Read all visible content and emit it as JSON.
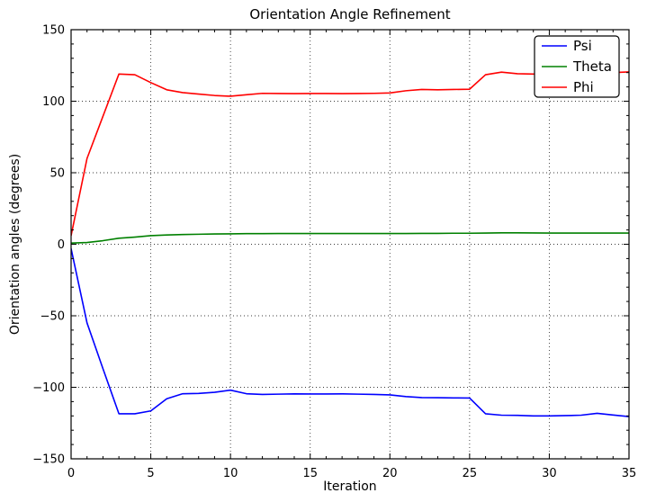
{
  "chart_data": {
    "type": "line",
    "title": "Orientation Angle Refinement",
    "xlabel": "Iteration",
    "ylabel": "Orientation angles (degrees)",
    "xlim": [
      0,
      35
    ],
    "ylim": [
      -150,
      150
    ],
    "xticks": [
      0,
      5,
      10,
      15,
      20,
      25,
      30,
      35
    ],
    "yticks": [
      -150,
      -100,
      -50,
      0,
      50,
      100,
      150
    ],
    "x_minor_step": 1,
    "y_minor_step": 10,
    "grid": "dotted-black-at-major-ticks",
    "legend_position": "upper right",
    "legend_entries": [
      "Psi",
      "Theta",
      "Phi"
    ],
    "x": [
      0,
      1,
      2,
      3,
      4,
      5,
      6,
      7,
      8,
      9,
      10,
      11,
      12,
      13,
      14,
      15,
      16,
      17,
      18,
      19,
      20,
      21,
      22,
      23,
      24,
      25,
      26,
      27,
      28,
      29,
      30,
      31,
      32,
      33,
      34,
      35
    ],
    "series": [
      {
        "name": "Psi",
        "color": "#0000ff",
        "values": [
          -3,
          -55,
          -87,
          -118.5,
          -118.5,
          -116.5,
          -108,
          -104.5,
          -104.3,
          -103.5,
          -102,
          -104.5,
          -105,
          -104.8,
          -104.6,
          -104.7,
          -104.7,
          -104.6,
          -104.8,
          -105,
          -105.3,
          -106.5,
          -107.2,
          -107.3,
          -107.4,
          -107.5,
          -118.5,
          -119.5,
          -119.6,
          -120,
          -120,
          -119.8,
          -119.5,
          -118.2,
          -119.4,
          -120.5
        ]
      },
      {
        "name": "Theta",
        "color": "#008000",
        "values": [
          0.8,
          1.2,
          2.5,
          4.2,
          5,
          6,
          6.5,
          6.8,
          7,
          7.2,
          7.3,
          7.4,
          7.4,
          7.5,
          7.5,
          7.5,
          7.5,
          7.5,
          7.5,
          7.5,
          7.5,
          7.5,
          7.6,
          7.6,
          7.7,
          7.7,
          7.8,
          8,
          8,
          7.9,
          7.8,
          7.8,
          7.8,
          7.8,
          7.8,
          7.8
        ]
      },
      {
        "name": "Phi",
        "color": "#ff0000",
        "values": [
          6,
          60,
          89.5,
          119,
          118.5,
          113,
          108,
          106,
          105,
          104,
          103.5,
          104.5,
          105.5,
          105.4,
          105.3,
          105.4,
          105.4,
          105.3,
          105.4,
          105.5,
          105.8,
          107.3,
          108.2,
          108,
          108.2,
          108.4,
          118.5,
          120.3,
          119.2,
          119,
          119.3,
          119.4,
          119.5,
          119.8,
          120,
          120.5
        ]
      }
    ]
  }
}
